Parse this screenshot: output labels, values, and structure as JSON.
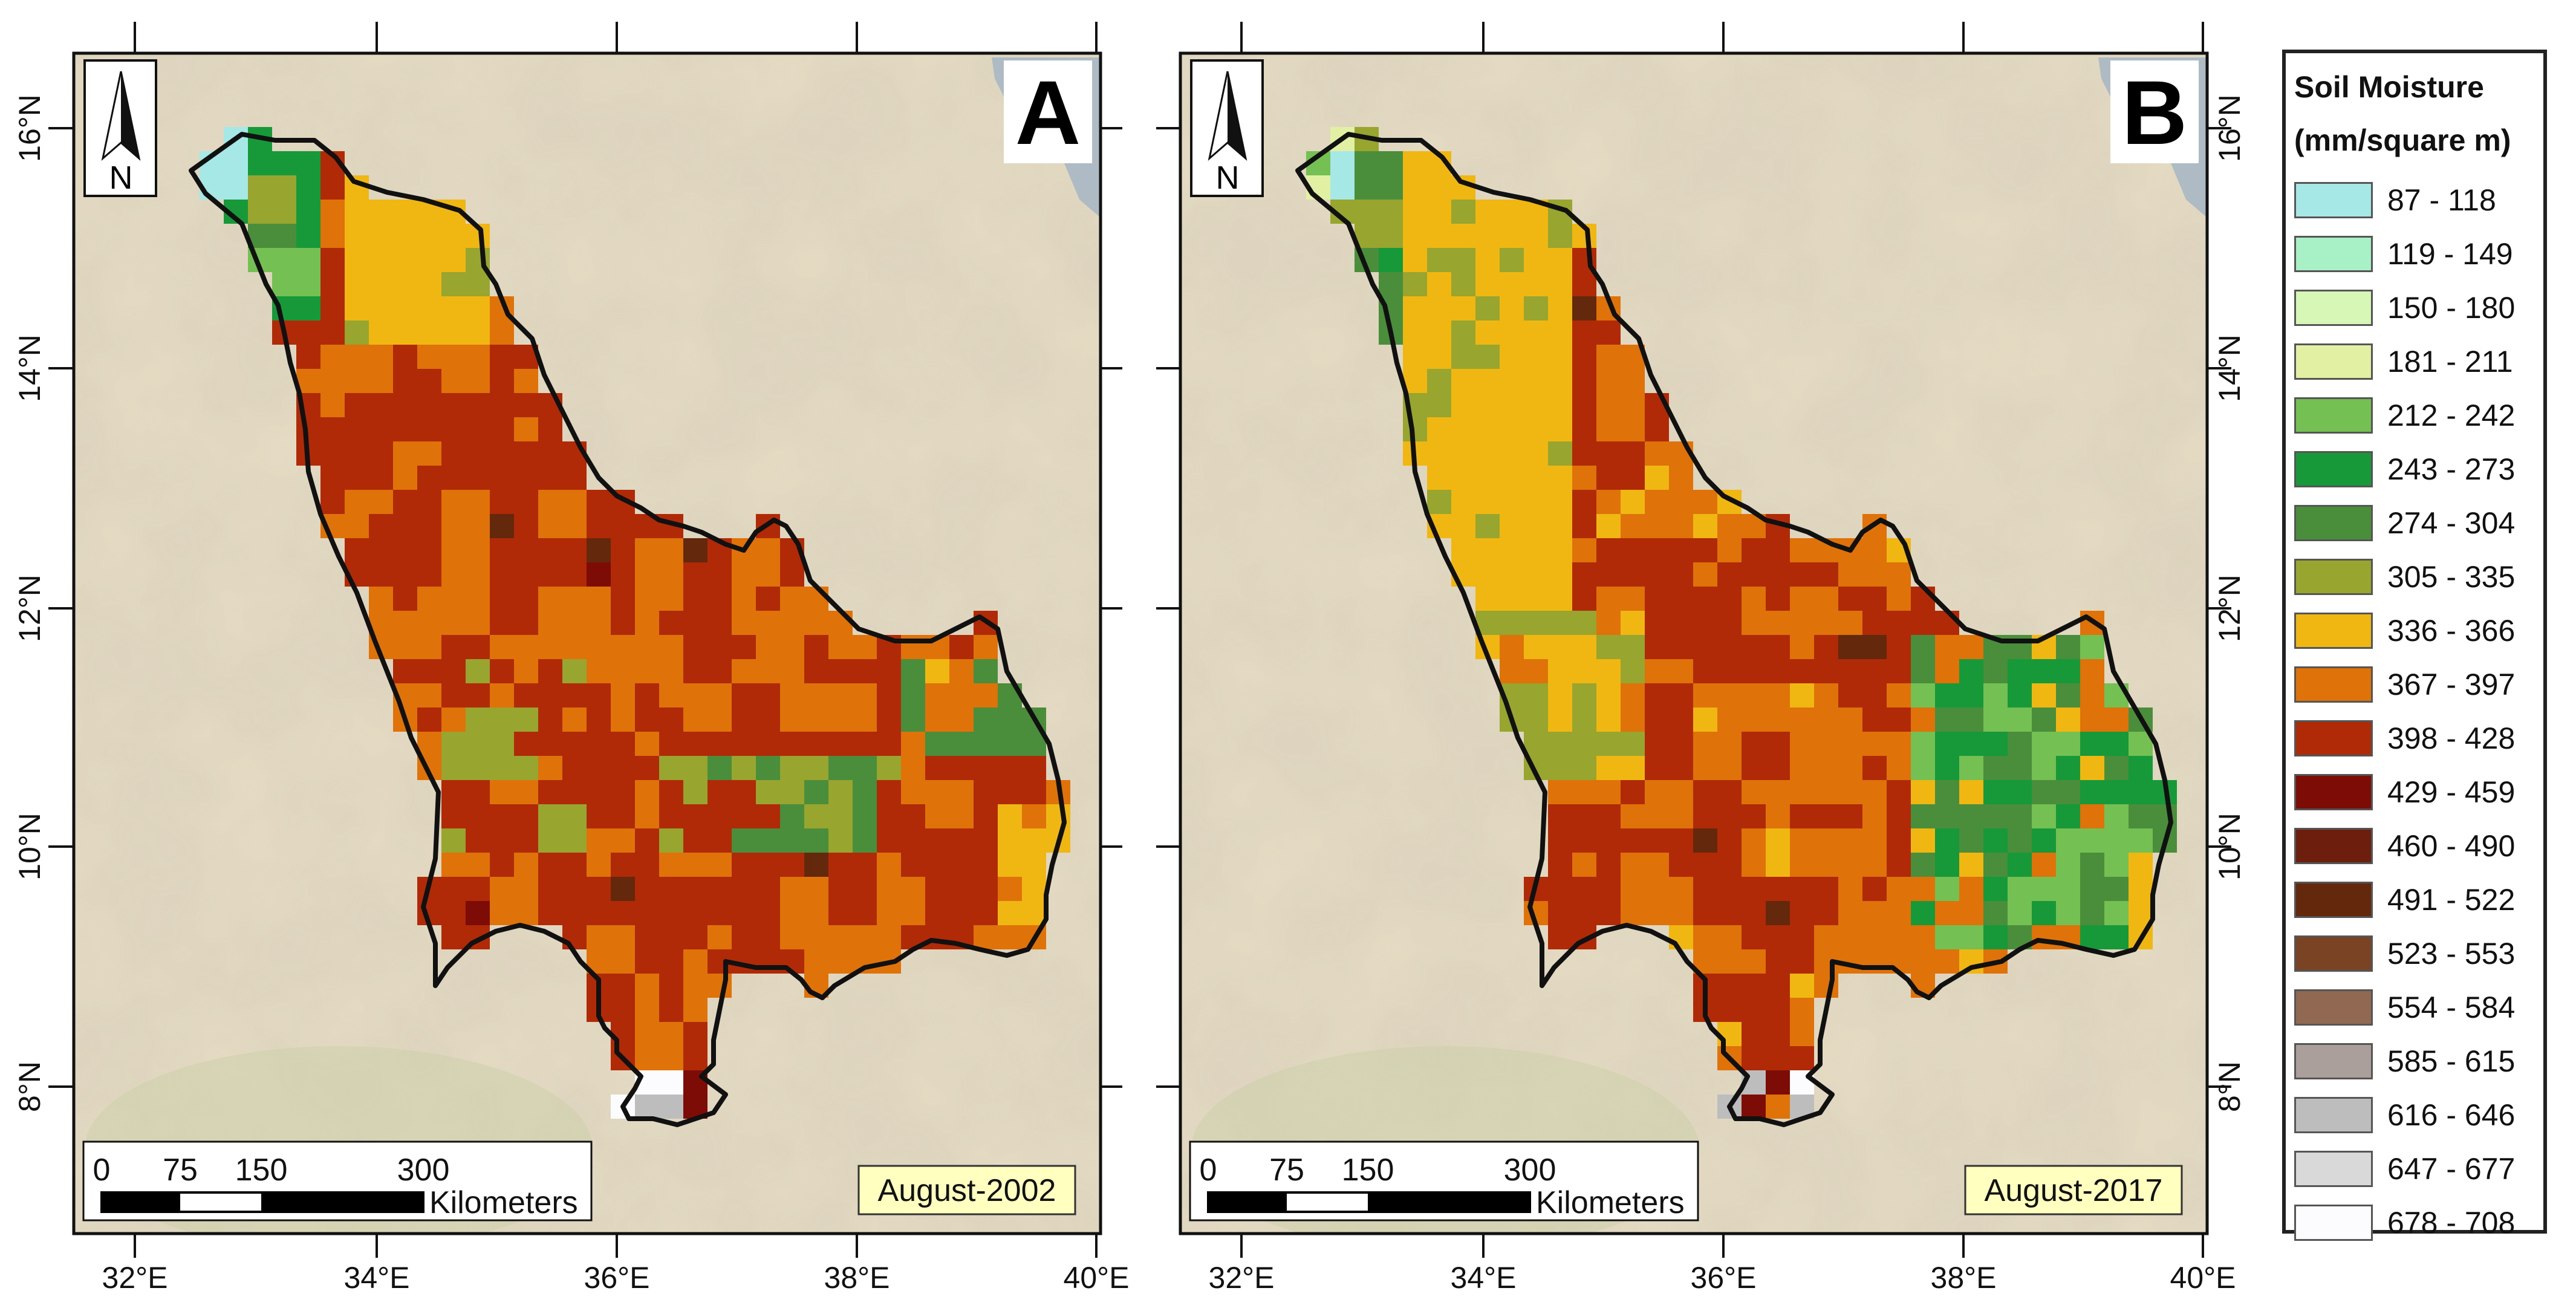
{
  "panels": [
    {
      "letter": "A",
      "date": "August-2002",
      "lat_label_side": "left",
      "north_label": "N"
    },
    {
      "letter": "B",
      "date": "August-2017",
      "lat_label_side": "right",
      "north_label": "N"
    }
  ],
  "axes": {
    "longitude_labels": [
      "32°E",
      "34°E",
      "36°E",
      "38°E",
      "40°E"
    ],
    "latitude_labels": [
      "16°N",
      "14°N",
      "12°N",
      "10°N",
      "8°N"
    ]
  },
  "scale_bar": {
    "ticks": [
      "0",
      "75",
      "150",
      "300"
    ],
    "unit": "Kilometers"
  },
  "legend": {
    "title_line1": "Soil Moisture",
    "title_line2": "(mm/square m)",
    "items": [
      {
        "label": "87 - 118",
        "color": "#a5e8e6"
      },
      {
        "label": "119 - 149",
        "color": "#a8f0c6"
      },
      {
        "label": "150 - 180",
        "color": "#d7f7b6"
      },
      {
        "label": "181 - 211",
        "color": "#e2f0a4"
      },
      {
        "label": "212 - 242",
        "color": "#74c052"
      },
      {
        "label": "243 - 273",
        "color": "#17993a"
      },
      {
        "label": "274 - 304",
        "color": "#4a8d3b"
      },
      {
        "label": "305 - 335",
        "color": "#98a52e"
      },
      {
        "label": "336 - 366",
        "color": "#f0b612"
      },
      {
        "label": "367 - 397",
        "color": "#df7309"
      },
      {
        "label": "398 - 428",
        "color": "#b02a08"
      },
      {
        "label": "429 - 459",
        "color": "#7d0b06"
      },
      {
        "label": "460 - 490",
        "color": "#6e1e0c"
      },
      {
        "label": "491 - 522",
        "color": "#64290c"
      },
      {
        "label": "523 - 553",
        "color": "#7a4424"
      },
      {
        "label": "554 - 584",
        "color": "#916852"
      },
      {
        "label": "585 - 615",
        "color": "#aa9f9b"
      },
      {
        "label": "616 - 646",
        "color": "#bdbdbd"
      },
      {
        "label": "647 - 677",
        "color": "#d9d9d9"
      },
      {
        "label": "678 - 708",
        "color": "#fcfcfe"
      }
    ]
  },
  "colors": {
    "basemap": "#e6dcc4",
    "boundary": "#111111",
    "date_box": "#ffffc0"
  }
}
